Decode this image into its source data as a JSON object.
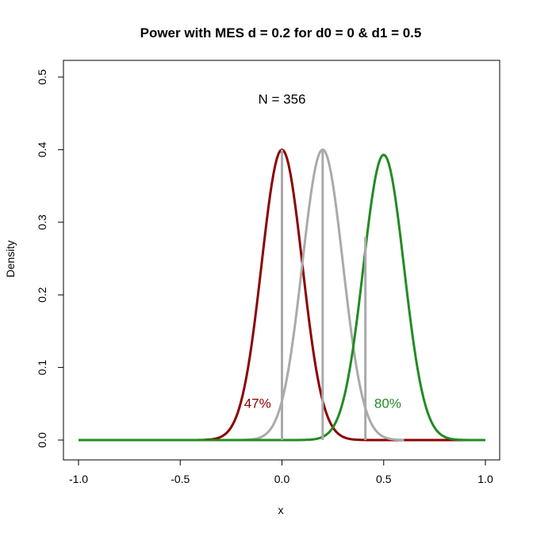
{
  "chart_data": {
    "type": "line",
    "title": "Power with MES d = 0.2 for d0 = 0 & d1 = 0.5",
    "xlabel": "x",
    "ylabel": "Density",
    "xlim": [
      -1.0,
      1.0
    ],
    "ylim": [
      0,
      0.5
    ],
    "x_ticks": [
      -1.0,
      -0.5,
      0.0,
      0.5,
      1.0
    ],
    "x_tick_labels": [
      "-1.0",
      "-0.5",
      "0.0",
      "0.5",
      "1.0"
    ],
    "y_ticks": [
      0.0,
      0.1,
      0.2,
      0.3,
      0.4,
      0.5
    ],
    "y_tick_labels": [
      "0.0",
      "0.1",
      "0.2",
      "0.3",
      "0.4",
      "0.5"
    ],
    "grid": false,
    "series": [
      {
        "color": "#8B0000",
        "mean": 0.0,
        "peak": 0.4,
        "sd": 0.1,
        "x_range": [
          -1.0,
          1.0
        ]
      },
      {
        "color": "#AAAAAA",
        "mean": 0.2,
        "peak": 0.4,
        "sd": 0.1,
        "x_range": [
          -0.2,
          0.6
        ]
      },
      {
        "color": "#228B22",
        "mean": 0.5,
        "peak": 0.393,
        "sd": 0.1,
        "x_range": [
          -1.0,
          1.0
        ]
      }
    ],
    "vertical_lines": [
      {
        "x": 0.0,
        "y_top": 0.4,
        "color": "#AAAAAA"
      },
      {
        "x": 0.2,
        "y_top": 0.4,
        "color": "#AAAAAA"
      },
      {
        "x": 0.41,
        "y_top": 0.28,
        "color": "#AAAAAA"
      }
    ],
    "annotations": [
      {
        "text": "N = 356",
        "x": 0.0,
        "y": 0.468,
        "color": "#000000"
      },
      {
        "text": "47%",
        "x": -0.12,
        "y": 0.049,
        "color": "#8B0000"
      },
      {
        "text": "80%",
        "x": 0.52,
        "y": 0.049,
        "color": "#228B22"
      }
    ]
  }
}
